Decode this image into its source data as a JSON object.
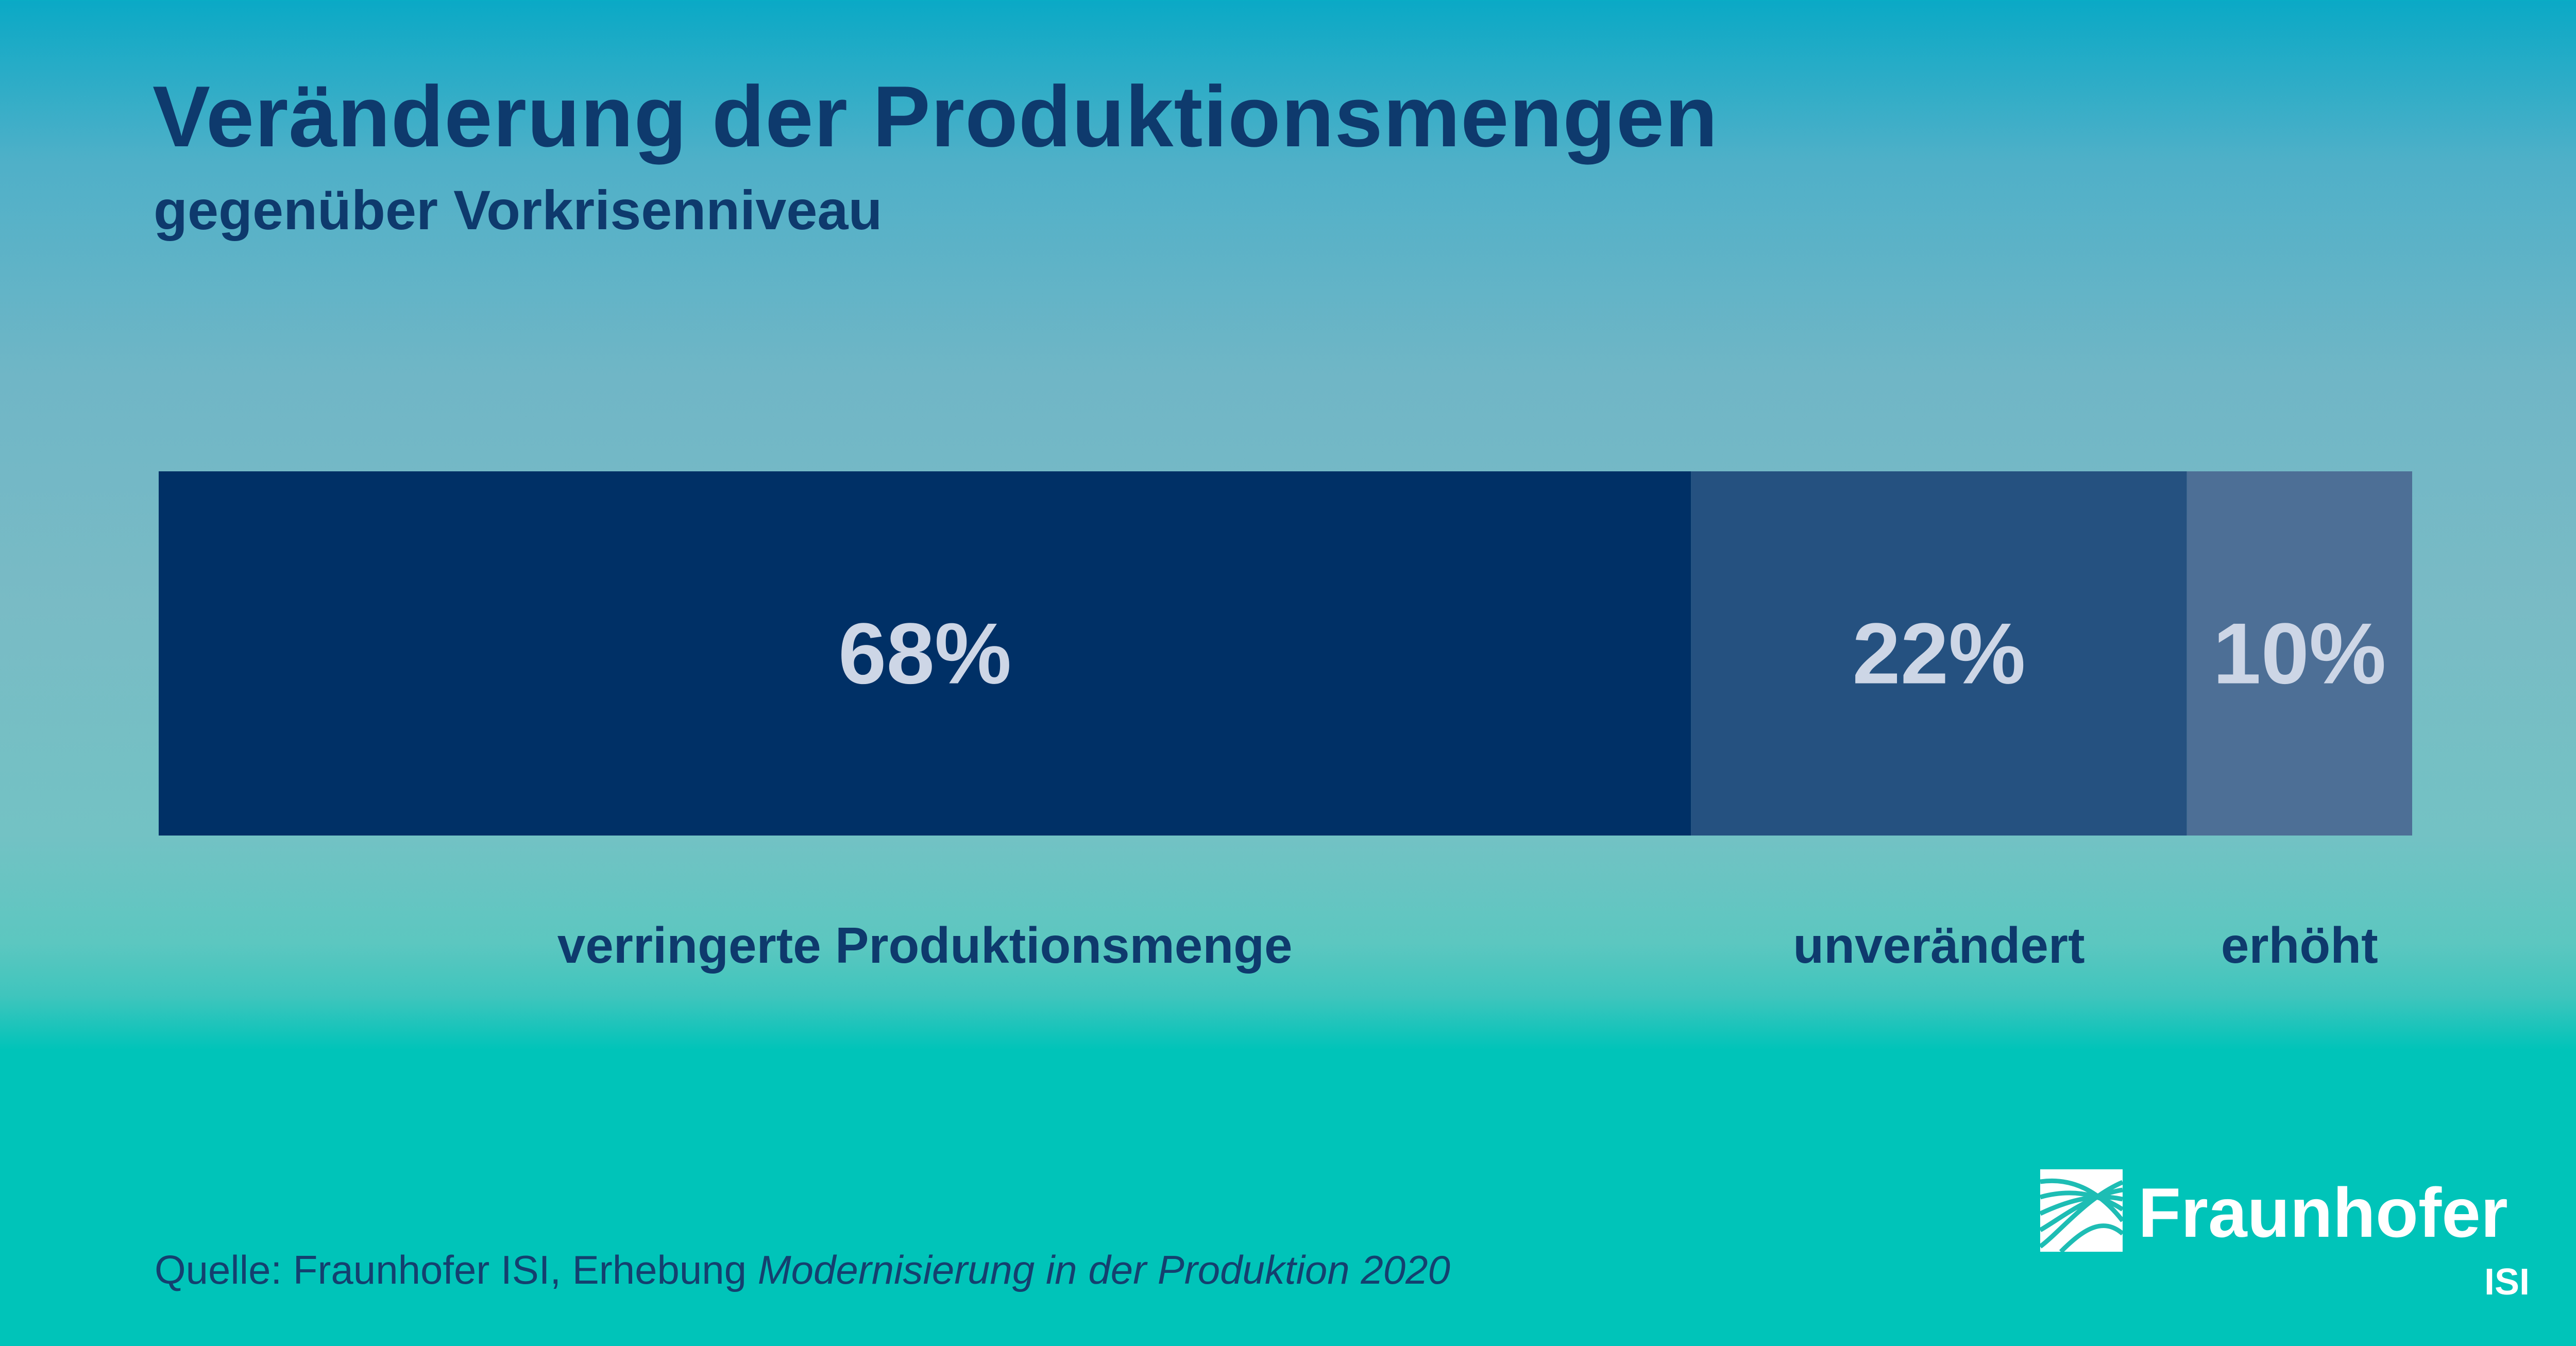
{
  "header": {
    "title": "Veränderung der Produktionsmengen",
    "subtitle": "gegenüber Vorkrisenniveau"
  },
  "chart_data": {
    "type": "bar",
    "orientation": "horizontal-stacked",
    "categories": [
      "verringerte Produktionsmenge",
      "unverändert",
      "erhöht"
    ],
    "values": [
      68,
      22,
      10
    ],
    "value_labels": [
      "68%",
      "22%",
      "10%"
    ],
    "unit": "%",
    "xlim": [
      0,
      100
    ],
    "grid": false,
    "colors": [
      "#003066",
      "#255180",
      "#4d6f96"
    ],
    "value_label_color": "#cdd6e6",
    "category_label_color": "#0e3a6d",
    "title": "Veränderung der Produktionsmengen",
    "subtitle": "gegenüber Vorkrisenniveau"
  },
  "footer": {
    "source_prefix": "Quelle: Fraunhofer ISI, Erhebung ",
    "source_italic": "Modernisierung in der Produktion 2020"
  },
  "logo": {
    "name": "Fraunhofer",
    "sub": "ISI",
    "icon": "fraunhofer-logo-icon",
    "color": "#ffffff"
  }
}
